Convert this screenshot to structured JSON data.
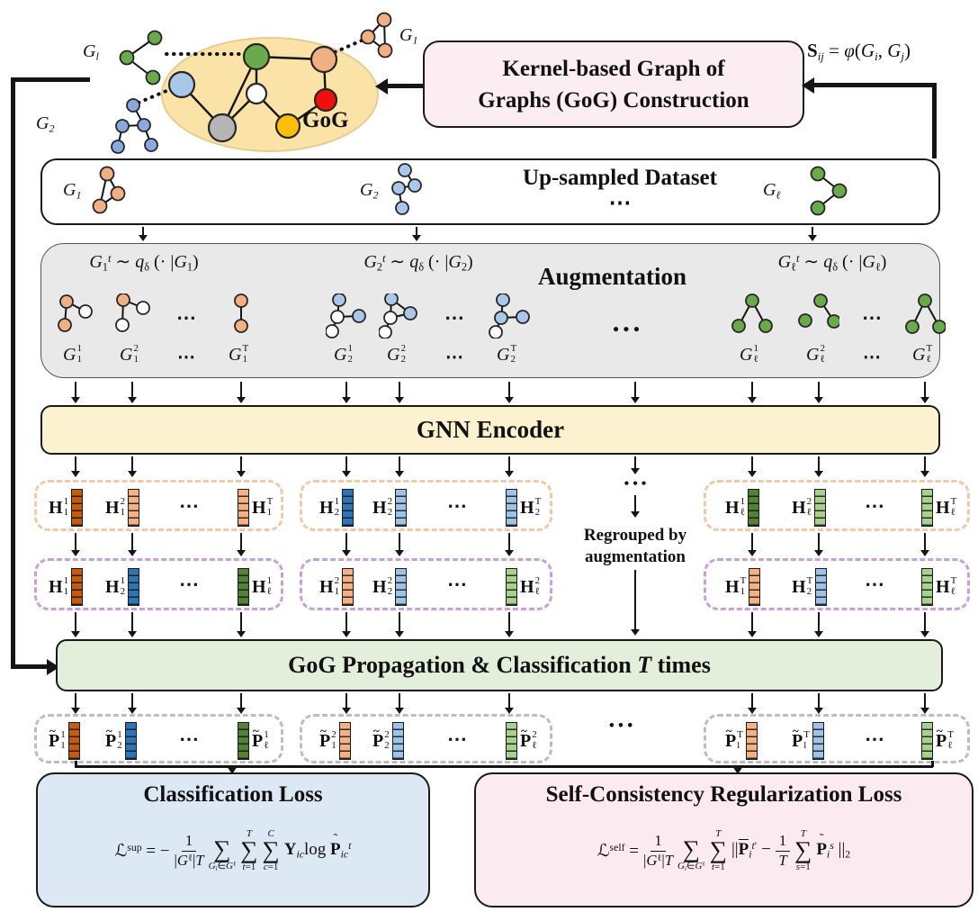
{
  "sum_symbol": "∑",
  "colors": {
    "orange_dark": "#c55a11",
    "orange_light": "#f4b183",
    "blue_dark": "#2e75b6",
    "blue_light": "#9dc3e6",
    "green_dark": "#538135",
    "green_light": "#a9d18e",
    "gog_ellipse": "#fbe3a8",
    "construction_box": "#fcedf3",
    "augmentation_box": "#e9e9e9",
    "encoder_box": "#fdf2cf",
    "propagation_box": "#e3efdb",
    "classification_box": "#dce9f5",
    "self_consistency_box": "#fceaf1",
    "dash_orange": "#f0c9a6",
    "dash_purple": "#c9a0d6",
    "dash_gray": "#bdbdbd",
    "node_green": "#6aaa4c",
    "node_orange": "#f1b083",
    "node_blue": "#a9c8e9",
    "node_white": "#ffffff",
    "node_red": "#f10e0e",
    "node_gray": "#b5b5b5",
    "node_yellow": "#fcc00b"
  },
  "top": {
    "gog_label": "GoG",
    "graph_l_label": {
      "b": "G",
      "s": "l"
    },
    "graph_2_label": {
      "b": "G",
      "s": "2"
    },
    "graph_1_label": {
      "b": "G",
      "s": "1"
    },
    "construction": {
      "line1": "Kernel-based Graph of",
      "line2": "Graphs (GoG) Construction"
    },
    "similarity": "\\b{S}_{\\i{ij}} = \\i{φ}(\\i{G}_{\\i{i}}, \\i{G}_{\\i{j}})"
  },
  "upsampled": {
    "title": "Up-sampled Dataset",
    "dots": "⋯",
    "g1": {
      "b": "G",
      "s": "1"
    },
    "g2": {
      "b": "G",
      "s": "2"
    },
    "gl": {
      "b": "G",
      "s": "ℓ"
    }
  },
  "augmentation": {
    "title": "Augmentation",
    "center_dots": "• • •",
    "groups": [
      {
        "formula": "\\i{G}_{1}^{\\i{t}} ∼ \\i{q}_{δ} (· |\\i{G}_{1})",
        "dots": "⋯",
        "labels": [
          {
            "b": "G",
            "t": "1",
            "s": "1"
          },
          {
            "b": "G",
            "t": "2",
            "s": "1"
          },
          {
            "b": "G",
            "t": "T",
            "s": "1"
          }
        ]
      },
      {
        "formula": "\\i{G}_{2}^{\\i{t}} ∼ \\i{q}_{δ} (· |\\i{G}_{2})",
        "dots": "⋯",
        "labels": [
          {
            "b": "G",
            "t": "1",
            "s": "2"
          },
          {
            "b": "G",
            "t": "2",
            "s": "2"
          },
          {
            "b": "G",
            "t": "T",
            "s": "2"
          }
        ]
      },
      {
        "formula": "\\i{G}_{ℓ}^{\\i{t}} ∼ \\i{q}_{δ} (· |\\i{G}_{ℓ})",
        "dots": "⋯",
        "labels": [
          {
            "b": "G",
            "t": "1",
            "s": "ℓ"
          },
          {
            "b": "G",
            "t": "2",
            "s": "ℓ"
          },
          {
            "b": "G",
            "t": "T",
            "s": "ℓ"
          }
        ]
      }
    ]
  },
  "encoder": {
    "title": "GNN Encoder"
  },
  "h_row1": {
    "boxes": [
      {
        "dots": "⋯",
        "items": [
          {
            "b": "H",
            "t": "1",
            "s": "1"
          },
          {
            "b": "H",
            "t": "2",
            "s": "1"
          },
          {
            "b": "H",
            "t": "T",
            "s": "1"
          }
        ]
      },
      {
        "dots": "⋯",
        "items": [
          {
            "b": "H",
            "t": "1",
            "s": "2"
          },
          {
            "b": "H",
            "t": "2",
            "s": "2"
          },
          {
            "b": "H",
            "t": "T",
            "s": "2"
          }
        ]
      },
      {
        "dots": "⋯",
        "items": [
          {
            "b": "H",
            "t": "1",
            "s": "ℓ"
          },
          {
            "b": "H",
            "t": "2",
            "s": "ℓ"
          },
          {
            "b": "H",
            "t": "T",
            "s": "ℓ"
          }
        ]
      }
    ]
  },
  "regroup": {
    "line1": "Regrouped by",
    "line2": "augmentation",
    "dots": "• • •"
  },
  "h_row2": {
    "boxes": [
      {
        "dots": "⋯",
        "items": [
          {
            "b": "H",
            "t": "1",
            "s": "1"
          },
          {
            "b": "H",
            "t": "1",
            "s": "2"
          },
          {
            "b": "H",
            "t": "1",
            "s": "ℓ"
          }
        ]
      },
      {
        "dots": "⋯",
        "items": [
          {
            "b": "H",
            "t": "2",
            "s": "1"
          },
          {
            "b": "H",
            "t": "2",
            "s": "2"
          },
          {
            "b": "H",
            "t": "2",
            "s": "ℓ"
          }
        ]
      },
      {
        "dots": "⋯",
        "items": [
          {
            "b": "H",
            "t": "T",
            "s": "1"
          },
          {
            "b": "H",
            "t": "T",
            "s": "2"
          },
          {
            "b": "H",
            "t": "T",
            "s": "ℓ"
          }
        ]
      }
    ]
  },
  "propagation": {
    "title": "GoG Propagation & Classification \\i{T} times"
  },
  "p_row": {
    "tilde": "~",
    "center_dots": "• • •",
    "boxes": [
      {
        "dots": "⋯",
        "items": [
          {
            "b": "P",
            "t": "1",
            "s": "1"
          },
          {
            "b": "P",
            "t": "1",
            "s": "2"
          },
          {
            "b": "P",
            "t": "1",
            "s": "ℓ"
          }
        ]
      },
      {
        "dots": "⋯",
        "items": [
          {
            "b": "P",
            "t": "2",
            "s": "1"
          },
          {
            "b": "P",
            "t": "2",
            "s": "2"
          },
          {
            "b": "P",
            "t": "2",
            "s": "ℓ"
          }
        ]
      },
      {
        "dots": "⋯",
        "items": [
          {
            "b": "P",
            "t": "T",
            "s": "l"
          },
          {
            "b": "P",
            "t": "T",
            "s": "l"
          },
          {
            "b": "P",
            "t": "T",
            "s": "ℓ"
          }
        ]
      }
    ]
  },
  "losses": {
    "classification": {
      "title": "Classification Loss",
      "lhs": "ℒ^{sup} = −",
      "frac_num": "1",
      "frac_den": "|\\i{G}^{ℓ}|\\i{T}",
      "sums": [
        {
          "top": " ",
          "bot": "\\i{G}_{\\i{i}}∈\\i{G}^{ℓ}"
        },
        {
          "top": "\\i{T}",
          "bot": "\\i{t}=1"
        },
        {
          "top": "\\i{C}",
          "bot": "\\i{c}=1"
        }
      ],
      "rhs": "\\b{Y}_{\\i{ic}}log \\bt{P}_{\\i{ic}}^{\\i{t}}"
    },
    "self_consistency": {
      "title": "Self-Consistency Regularization Loss",
      "lhs": "ℒ^{self} =",
      "frac1_num": "1",
      "frac1_den": "|\\i{G}^{ℓ}|\\i{T}",
      "sums": [
        {
          "top": " ",
          "bot": "\\i{G}_{\\i{i}}∈\\i{G}^{ℓ}"
        },
        {
          "top": "\\i{T}",
          "bot": "\\i{t}=1"
        },
        {
          "top": "\\i{T}",
          "bot": "\\i{s}=1"
        }
      ],
      "mid": "||\\bb{P}_{\\i{i}}^{\\i{t}′} −",
      "frac2_num": "1",
      "frac2_den": "\\i{T}",
      "tail": "\\bt{P}_{\\i{i}}^{\\i{s}} ||_{2}"
    }
  }
}
